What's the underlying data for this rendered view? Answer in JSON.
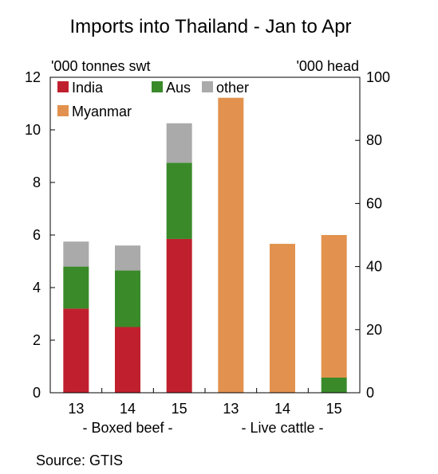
{
  "chart_data": {
    "type": "bar",
    "title": "Imports into Thailand - Jan to Apr",
    "left_axis": {
      "unit_label": "'000 tonnes swt",
      "ylim": [
        0,
        12
      ],
      "ticks": [
        "0",
        "2",
        "4",
        "6",
        "8",
        "10",
        "12"
      ]
    },
    "right_axis": {
      "unit_label": "'000 head",
      "ylim": [
        0,
        100
      ],
      "ticks": [
        "0",
        "20",
        "40",
        "60",
        "80",
        "100"
      ]
    },
    "categories": [
      "13",
      "14",
      "15",
      "13",
      "14",
      "15"
    ],
    "groups": [
      {
        "label": "- Boxed beef -",
        "axis": "left",
        "categories": [
          "13",
          "14",
          "15"
        ]
      },
      {
        "label": "- Live cattle -",
        "axis": "right",
        "categories": [
          "13",
          "14",
          "15"
        ]
      }
    ],
    "series": [
      {
        "name": "India",
        "color": "#c0202e",
        "values": [
          3.2,
          2.5,
          5.85,
          0,
          0,
          0
        ]
      },
      {
        "name": "Aus",
        "color": "#3a8a2a",
        "values": [
          1.6,
          2.15,
          2.9,
          0,
          0,
          4.8
        ]
      },
      {
        "name": "other",
        "color": "#aaaaaa",
        "values": [
          0.95,
          0.95,
          1.5,
          0,
          0,
          0
        ]
      },
      {
        "name": "Myanmar",
        "color": "#e2924e",
        "values": [
          0,
          0,
          0,
          93.5,
          47.2,
          45.2
        ]
      }
    ],
    "legend_position": "top-left",
    "grid": false,
    "source": "Source: GTIS"
  }
}
